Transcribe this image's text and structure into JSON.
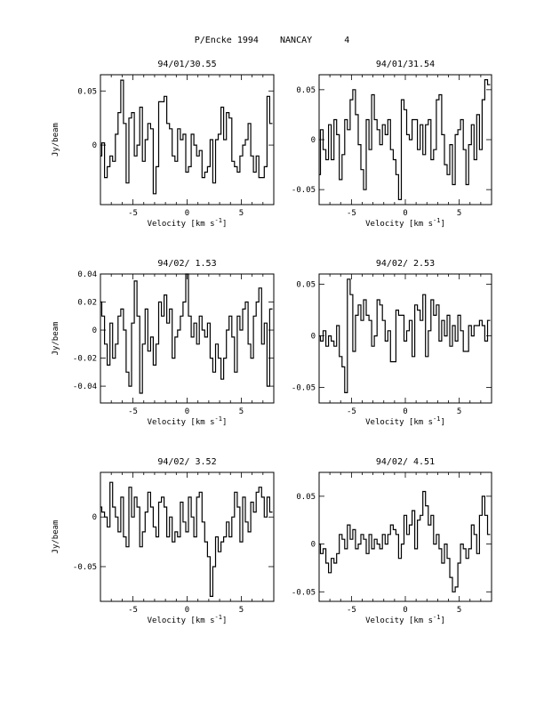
{
  "page_title": "P/Encke 1994    NANCAY      4",
  "chart_data": [
    {
      "type": "line",
      "title": "94/01/30.55",
      "xlabel": "Velocity [km s^-1]",
      "ylabel": "Jy/beam",
      "xlim": [
        -8,
        8
      ],
      "ylim": [
        -0.055,
        0.065
      ],
      "xticks": [
        {
          "v": -5,
          "label": "-5"
        },
        {
          "v": 0,
          "label": "0"
        },
        {
          "v": 5,
          "label": "5"
        }
      ],
      "yticks": [
        {
          "v": 0,
          "label": "0"
        },
        {
          "v": 0.05,
          "label": "0.05"
        }
      ],
      "series": [
        {
          "x": [
            -8,
            -7.75,
            -7.5,
            -7.25,
            -7,
            -6.75,
            -6.5,
            -6.25,
            -6,
            -5.75,
            -5.5,
            -5.25,
            -5,
            -4.75,
            -4.5,
            -4.25,
            -4,
            -3.75,
            -3.5,
            -3.25,
            -3,
            -2.75,
            -2.5,
            -2.25,
            -2,
            -1.75,
            -1.5,
            -1.25,
            -1,
            -0.75,
            -0.5,
            -0.25,
            0,
            0.25,
            0.5,
            0.75,
            1,
            1.25,
            1.5,
            1.75,
            2,
            2.25,
            2.5,
            2.75,
            3,
            3.25,
            3.5,
            3.75,
            4,
            4.25,
            4.5,
            4.75,
            5,
            5.25,
            5.5,
            5.75,
            6,
            6.25,
            6.5,
            6.75,
            7,
            7.25,
            7.5,
            7.75
          ],
          "y": [
            -0.01,
            0.002,
            -0.03,
            -0.02,
            -0.01,
            -0.015,
            0.01,
            0.03,
            0.06,
            0.02,
            -0.035,
            0.025,
            0.03,
            -0.01,
            0.0,
            0.035,
            -0.015,
            0.005,
            0.02,
            0.015,
            -0.045,
            -0.02,
            0.04,
            0.04,
            0.045,
            0.02,
            0.015,
            -0.01,
            -0.015,
            0.015,
            0.005,
            0.01,
            -0.025,
            -0.02,
            0.01,
            0.0,
            -0.01,
            -0.005,
            -0.03,
            -0.025,
            -0.02,
            0.005,
            -0.035,
            0.005,
            0.01,
            0.035,
            0.005,
            0.03,
            0.025,
            -0.015,
            -0.02,
            -0.025,
            -0.01,
            0.0,
            0.005,
            0.02,
            -0.01,
            -0.025,
            -0.01,
            -0.03,
            -0.03,
            -0.02,
            0.045,
            0.02
          ]
        }
      ]
    },
    {
      "type": "line",
      "title": "94/01/31.54",
      "xlabel": "Velocity [km s^-1]",
      "ylabel": "",
      "xlim": [
        -8,
        8
      ],
      "ylim": [
        -0.065,
        0.065
      ],
      "xticks": [
        {
          "v": -5,
          "label": "-5"
        },
        {
          "v": 0,
          "label": "0"
        },
        {
          "v": 5,
          "label": "5"
        }
      ],
      "yticks": [
        {
          "v": -0.05,
          "label": "-0.05"
        },
        {
          "v": 0,
          "label": "0"
        },
        {
          "v": 0.05,
          "label": "0.05"
        }
      ],
      "series": [
        {
          "x": [
            -8,
            -7.75,
            -7.5,
            -7.25,
            -7,
            -6.75,
            -6.5,
            -6.25,
            -6,
            -5.75,
            -5.5,
            -5.25,
            -5,
            -4.75,
            -4.5,
            -4.25,
            -4,
            -3.75,
            -3.5,
            -3.25,
            -3,
            -2.75,
            -2.5,
            -2.25,
            -2,
            -1.75,
            -1.5,
            -1.25,
            -1,
            -0.75,
            -0.5,
            -0.25,
            0,
            0.25,
            0.5,
            0.75,
            1,
            1.25,
            1.5,
            1.75,
            2,
            2.25,
            2.5,
            2.75,
            3,
            3.25,
            3.5,
            3.75,
            4,
            4.25,
            4.5,
            4.75,
            5,
            5.25,
            5.5,
            5.75,
            6,
            6.25,
            6.5,
            6.75,
            7,
            7.25,
            7.5,
            7.75
          ],
          "y": [
            -0.035,
            0.01,
            -0.01,
            -0.02,
            0.015,
            -0.02,
            0.02,
            0.005,
            -0.04,
            -0.015,
            0.02,
            0.01,
            0.04,
            0.05,
            0.025,
            -0.005,
            -0.03,
            -0.05,
            0.02,
            -0.01,
            0.045,
            0.02,
            0.01,
            -0.005,
            0.015,
            0.005,
            0.02,
            -0.01,
            -0.02,
            -0.035,
            -0.06,
            0.04,
            0.03,
            0.005,
            0.0,
            0.02,
            0.02,
            -0.01,
            0.015,
            -0.015,
            0.015,
            0.02,
            -0.02,
            -0.01,
            0.04,
            0.045,
            0.005,
            -0.025,
            -0.035,
            -0.005,
            -0.045,
            0.005,
            0.01,
            0.02,
            -0.01,
            -0.045,
            -0.005,
            0.015,
            -0.02,
            0.025,
            -0.01,
            0.04,
            0.06,
            0.055
          ]
        }
      ]
    },
    {
      "type": "line",
      "title": "94/02/ 1.53",
      "xlabel": "Velocity [km s^-1]",
      "ylabel": "Jy/beam",
      "xlim": [
        -8,
        8
      ],
      "ylim": [
        -0.052,
        0.04
      ],
      "xticks": [
        {
          "v": -5,
          "label": "-5"
        },
        {
          "v": 0,
          "label": "0"
        },
        {
          "v": 5,
          "label": "5"
        }
      ],
      "yticks": [
        {
          "v": -0.04,
          "label": "-0.04"
        },
        {
          "v": -0.02,
          "label": "-0.02"
        },
        {
          "v": 0,
          "label": "0"
        },
        {
          "v": 0.02,
          "label": "0.02"
        },
        {
          "v": 0.04,
          "label": "0.04"
        }
      ],
      "series": [
        {
          "x": [
            -8,
            -7.75,
            -7.5,
            -7.25,
            -7,
            -6.75,
            -6.5,
            -6.25,
            -6,
            -5.75,
            -5.5,
            -5.25,
            -5,
            -4.75,
            -4.5,
            -4.25,
            -4,
            -3.75,
            -3.5,
            -3.25,
            -3,
            -2.75,
            -2.5,
            -2.25,
            -2,
            -1.75,
            -1.5,
            -1.25,
            -1,
            -0.75,
            -0.5,
            -0.25,
            0,
            0.25,
            0.5,
            0.75,
            1,
            1.25,
            1.5,
            1.75,
            2,
            2.25,
            2.5,
            2.75,
            3,
            3.25,
            3.5,
            3.75,
            4,
            4.25,
            4.5,
            4.75,
            5,
            5.25,
            5.5,
            5.75,
            6,
            6.25,
            6.5,
            6.75,
            7,
            7.25,
            7.5,
            7.75
          ],
          "y": [
            0.02,
            0.01,
            -0.01,
            -0.025,
            0.005,
            -0.02,
            -0.01,
            0.01,
            0.015,
            0.0,
            -0.03,
            -0.04,
            0.005,
            0.035,
            0.01,
            -0.045,
            -0.01,
            0.015,
            -0.015,
            -0.005,
            -0.025,
            -0.01,
            0.02,
            0.01,
            0.025,
            0.005,
            0.015,
            -0.02,
            -0.005,
            0.0,
            0.01,
            0.02,
            0.04,
            0.01,
            -0.005,
            0.005,
            -0.01,
            0.01,
            0.0,
            -0.005,
            0.005,
            -0.02,
            -0.03,
            -0.01,
            -0.02,
            -0.035,
            -0.02,
            0.0,
            0.01,
            -0.005,
            -0.03,
            0.01,
            0.0,
            0.015,
            0.02,
            -0.01,
            -0.02,
            0.01,
            0.02,
            0.03,
            -0.01,
            0.005,
            -0.04,
            0.015
          ]
        }
      ]
    },
    {
      "type": "line",
      "title": "94/02/ 2.53",
      "xlabel": "Velocity [km s^-1]",
      "ylabel": "",
      "xlim": [
        -8,
        8
      ],
      "ylim": [
        -0.065,
        0.06
      ],
      "xticks": [
        {
          "v": -5,
          "label": "-5"
        },
        {
          "v": 0,
          "label": "0"
        },
        {
          "v": 5,
          "label": "5"
        }
      ],
      "yticks": [
        {
          "v": -0.05,
          "label": "-0.05"
        },
        {
          "v": 0,
          "label": "0"
        },
        {
          "v": 0.05,
          "label": "0.05"
        }
      ],
      "series": [
        {
          "x": [
            -8,
            -7.75,
            -7.5,
            -7.25,
            -7,
            -6.75,
            -6.5,
            -6.25,
            -6,
            -5.75,
            -5.5,
            -5.25,
            -5,
            -4.75,
            -4.5,
            -4.25,
            -4,
            -3.75,
            -3.5,
            -3.25,
            -3,
            -2.75,
            -2.5,
            -2.25,
            -2,
            -1.75,
            -1.5,
            -1.25,
            -1,
            -0.75,
            -0.5,
            -0.25,
            0,
            0.25,
            0.5,
            0.75,
            1,
            1.25,
            1.5,
            1.75,
            2,
            2.25,
            2.5,
            2.75,
            3,
            3.25,
            3.5,
            3.75,
            4,
            4.25,
            4.5,
            4.75,
            5,
            5.25,
            5.5,
            5.75,
            6,
            6.25,
            6.5,
            6.75,
            7,
            7.25,
            7.5,
            7.75
          ],
          "y": [
            0.0,
            -0.005,
            0.005,
            -0.01,
            0.0,
            -0.005,
            -0.01,
            0.01,
            -0.02,
            -0.03,
            -0.055,
            0.055,
            0.04,
            -0.015,
            0.02,
            0.03,
            0.015,
            0.035,
            0.02,
            0.015,
            -0.01,
            0.0,
            0.035,
            0.03,
            0.015,
            -0.005,
            0.005,
            -0.025,
            -0.025,
            0.025,
            0.02,
            0.02,
            -0.005,
            0.005,
            0.015,
            -0.02,
            0.03,
            0.025,
            0.015,
            0.04,
            -0.02,
            0.005,
            0.035,
            0.02,
            0.03,
            -0.005,
            0.015,
            0.0,
            0.02,
            -0.01,
            0.01,
            -0.005,
            0.02,
            0.005,
            -0.015,
            -0.015,
            0.01,
            0.0,
            0.01,
            0.01,
            0.015,
            0.01,
            -0.005,
            0.015
          ]
        }
      ]
    },
    {
      "type": "line",
      "title": "94/02/ 3.52",
      "xlabel": "Velocity [km s^-1]",
      "ylabel": "Jy/beam",
      "xlim": [
        -8,
        8
      ],
      "ylim": [
        -0.085,
        0.045
      ],
      "xticks": [
        {
          "v": -5,
          "label": "-5"
        },
        {
          "v": 0,
          "label": "0"
        },
        {
          "v": 5,
          "label": "5"
        }
      ],
      "yticks": [
        {
          "v": -0.05,
          "label": "-0.05"
        },
        {
          "v": 0,
          "label": "0"
        }
      ],
      "series": [
        {
          "x": [
            -8,
            -7.75,
            -7.5,
            -7.25,
            -7,
            -6.75,
            -6.5,
            -6.25,
            -6,
            -5.75,
            -5.5,
            -5.25,
            -5,
            -4.75,
            -4.5,
            -4.25,
            -4,
            -3.75,
            -3.5,
            -3.25,
            -3,
            -2.75,
            -2.5,
            -2.25,
            -2,
            -1.75,
            -1.5,
            -1.25,
            -1,
            -0.75,
            -0.5,
            -0.25,
            0,
            0.25,
            0.5,
            0.75,
            1,
            1.25,
            1.5,
            1.75,
            2,
            2.25,
            2.5,
            2.75,
            3,
            3.25,
            3.5,
            3.75,
            4,
            4.25,
            4.5,
            4.75,
            5,
            5.25,
            5.5,
            5.75,
            6,
            6.25,
            6.5,
            6.75,
            7,
            7.25,
            7.5,
            7.75
          ],
          "y": [
            0.01,
            0.005,
            0.0,
            -0.01,
            0.035,
            0.01,
            0.0,
            -0.015,
            0.02,
            -0.02,
            -0.03,
            0.03,
            0.0,
            0.02,
            0.01,
            -0.03,
            -0.015,
            0.005,
            0.025,
            0.01,
            -0.01,
            -0.02,
            0.015,
            0.02,
            0.01,
            -0.02,
            0.0,
            -0.025,
            -0.015,
            -0.02,
            0.015,
            -0.005,
            -0.015,
            0.02,
            0.0,
            -0.02,
            0.02,
            0.025,
            -0.005,
            -0.025,
            -0.04,
            -0.08,
            -0.05,
            -0.02,
            -0.035,
            -0.025,
            -0.02,
            -0.005,
            -0.02,
            0.0,
            0.025,
            0.01,
            -0.025,
            0.02,
            -0.005,
            -0.015,
            0.015,
            0.005,
            0.025,
            0.03,
            0.02,
            0.0,
            0.02,
            0.005
          ]
        }
      ]
    },
    {
      "type": "line",
      "title": "94/02/ 4.51",
      "xlabel": "Velocity [km s^-1]",
      "ylabel": "",
      "xlim": [
        -8,
        8
      ],
      "ylim": [
        -0.06,
        0.075
      ],
      "xticks": [
        {
          "v": -5,
          "label": "-5"
        },
        {
          "v": 0,
          "label": "0"
        },
        {
          "v": 5,
          "label": "5"
        }
      ],
      "yticks": [
        {
          "v": -0.05,
          "label": "-0.05"
        },
        {
          "v": 0,
          "label": "0"
        },
        {
          "v": 0.05,
          "label": "0.05"
        }
      ],
      "series": [
        {
          "x": [
            -8,
            -7.75,
            -7.5,
            -7.25,
            -7,
            -6.75,
            -6.5,
            -6.25,
            -6,
            -5.75,
            -5.5,
            -5.25,
            -5,
            -4.75,
            -4.5,
            -4.25,
            -4,
            -3.75,
            -3.5,
            -3.25,
            -3,
            -2.75,
            -2.5,
            -2.25,
            -2,
            -1.75,
            -1.5,
            -1.25,
            -1,
            -0.75,
            -0.5,
            -0.25,
            0,
            0.25,
            0.5,
            0.75,
            1,
            1.25,
            1.5,
            1.75,
            2,
            2.25,
            2.5,
            2.75,
            3,
            3.25,
            3.5,
            3.75,
            4,
            4.25,
            4.5,
            4.75,
            5,
            5.25,
            5.5,
            5.75,
            6,
            6.25,
            6.5,
            6.75,
            7,
            7.25,
            7.5,
            7.75
          ],
          "y": [
            0.0,
            -0.01,
            -0.005,
            -0.02,
            -0.03,
            -0.015,
            -0.02,
            -0.01,
            0.01,
            0.005,
            -0.005,
            0.02,
            0.005,
            0.015,
            -0.005,
            0.0,
            0.01,
            0.005,
            -0.01,
            0.01,
            -0.005,
            0.005,
            0.0,
            -0.005,
            0.01,
            0.0,
            0.01,
            0.02,
            0.015,
            0.01,
            -0.015,
            0.0,
            0.03,
            0.01,
            0.02,
            0.035,
            -0.005,
            0.025,
            0.03,
            0.055,
            0.04,
            0.02,
            0.03,
            0.0,
            0.01,
            -0.005,
            -0.02,
            0.0,
            -0.015,
            -0.035,
            -0.05,
            -0.045,
            -0.02,
            0.0,
            -0.005,
            -0.015,
            -0.005,
            0.02,
            0.01,
            -0.01,
            0.03,
            0.05,
            0.03,
            0.01
          ]
        }
      ]
    }
  ]
}
